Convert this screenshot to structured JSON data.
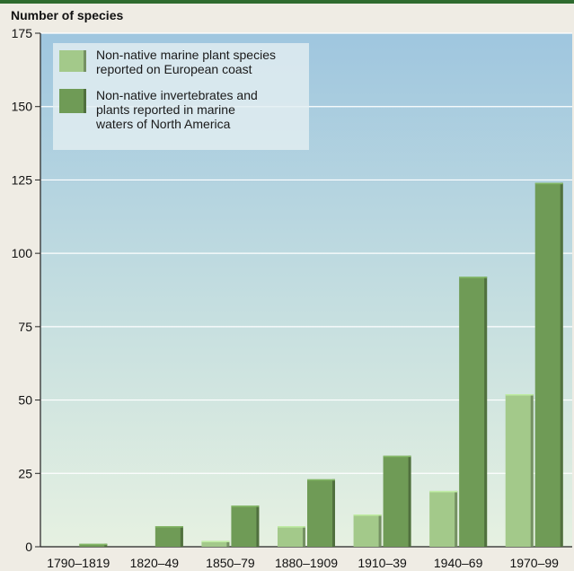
{
  "chart_data": {
    "type": "bar",
    "ylabel": "Number of species",
    "ylim": [
      0,
      175
    ],
    "yticks": [
      0,
      25,
      50,
      75,
      100,
      125,
      150,
      175
    ],
    "grid": true,
    "legend_position": "top-left",
    "categories": [
      "1790–1819",
      "1820–49",
      "1850–79",
      "1880–1909",
      "1910–39",
      "1940–69",
      "1970–99"
    ],
    "series": [
      {
        "legend_lines": [
          "Non-native marine plant species",
          "reported on European coast"
        ],
        "color": "#a3c98a",
        "values": [
          0,
          0,
          2,
          7,
          11,
          19,
          52
        ]
      },
      {
        "legend_lines": [
          "Non-native invertebrates and",
          "plants reported in marine",
          "waters of North America"
        ],
        "color": "#6f9b56",
        "values": [
          1,
          7,
          14,
          23,
          31,
          92,
          124
        ]
      }
    ]
  }
}
